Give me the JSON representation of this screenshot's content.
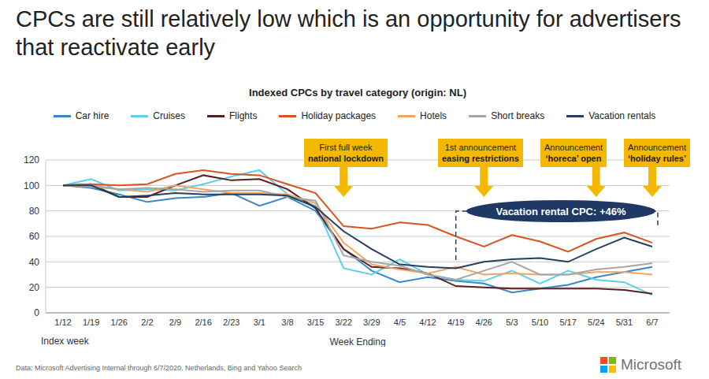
{
  "chart_data": {
    "type": "line",
    "title": "CPCs are still relatively low which is an opportunity for advertisers that reactivate early",
    "subtitle": "Indexed CPCs by travel category (origin: NL)",
    "categories": [
      "1/12",
      "1/19",
      "1/26",
      "2/2",
      "2/9",
      "2/16",
      "2/23",
      "3/1",
      "3/8",
      "3/15",
      "3/22",
      "3/29",
      "4/5",
      "4/12",
      "4/19",
      "4/26",
      "5/3",
      "5/10",
      "5/17",
      "5/24",
      "5/31",
      "6/7"
    ],
    "series": [
      {
        "name": "Car hire",
        "color": "#3a87c8",
        "values": [
          100,
          98,
          93,
          87,
          90,
          91,
          94,
          84,
          91,
          80,
          50,
          33,
          24,
          28,
          25,
          23,
          16,
          19,
          22,
          28,
          32,
          36
        ]
      },
      {
        "name": "Cruises",
        "color": "#5ccff0",
        "values": [
          100,
          105,
          96,
          97,
          96,
          101,
          107,
          112,
          93,
          84,
          35,
          30,
          42,
          30,
          26,
          25,
          33,
          23,
          33,
          26,
          24,
          14
        ]
      },
      {
        "name": "Flights",
        "color": "#5c1f1f",
        "values": [
          100,
          101,
          91,
          91,
          100,
          108,
          104,
          105,
          97,
          82,
          50,
          36,
          35,
          31,
          21,
          20,
          19,
          19,
          19,
          19,
          18,
          15
        ]
      },
      {
        "name": "Holiday packages",
        "color": "#d9541e",
        "values": [
          100,
          101,
          100,
          101,
          109,
          112,
          109,
          108,
          101,
          94,
          68,
          66,
          71,
          69,
          60,
          52,
          61,
          56,
          48,
          58,
          63,
          55
        ]
      },
      {
        "name": "Hotels",
        "color": "#f4a460",
        "values": [
          100,
          99,
          97,
          95,
          100,
          97,
          94,
          94,
          93,
          86,
          55,
          38,
          34,
          31,
          36,
          30,
          31,
          30,
          30,
          32,
          32,
          30
        ]
      },
      {
        "name": "Short breaks",
        "color": "#a6a6a6",
        "values": [
          100,
          100,
          97,
          98,
          97,
          95,
          96,
          96,
          91,
          88,
          45,
          40,
          37,
          30,
          26,
          33,
          40,
          30,
          30,
          34,
          36,
          39
        ]
      },
      {
        "name": "Vacation rentals",
        "color": "#243f60",
        "values": [
          100,
          100,
          91,
          92,
          94,
          93,
          93,
          93,
          92,
          83,
          64,
          50,
          38,
          36,
          35,
          40,
          42,
          43,
          40,
          50,
          59,
          52
        ]
      }
    ],
    "ylim": [
      0,
      120
    ],
    "yticks": [
      0,
      20,
      40,
      60,
      80,
      100,
      120
    ],
    "grid": true,
    "legend": "top",
    "x_label": "Week Ending",
    "x_index_label": "Index week",
    "annotations": [
      {
        "x": "3/22",
        "lines": [
          "First full week",
          "national lockdown"
        ]
      },
      {
        "x": "4/26",
        "lines": [
          "1st announcement",
          "easing restrictions"
        ]
      },
      {
        "x": "5/24",
        "lines": [
          "Announcement",
          "‘horeca’ open"
        ]
      },
      {
        "x": "6/7",
        "lines": [
          "Announcement",
          "‘holiday rules’"
        ]
      }
    ],
    "callout": "Vacation rental CPC: +46%",
    "source": "Data: Microsoft Advertising Internal through 6/7/2020, Netherlands, Bing and Yahoo Search",
    "logo": "Microsoft"
  }
}
